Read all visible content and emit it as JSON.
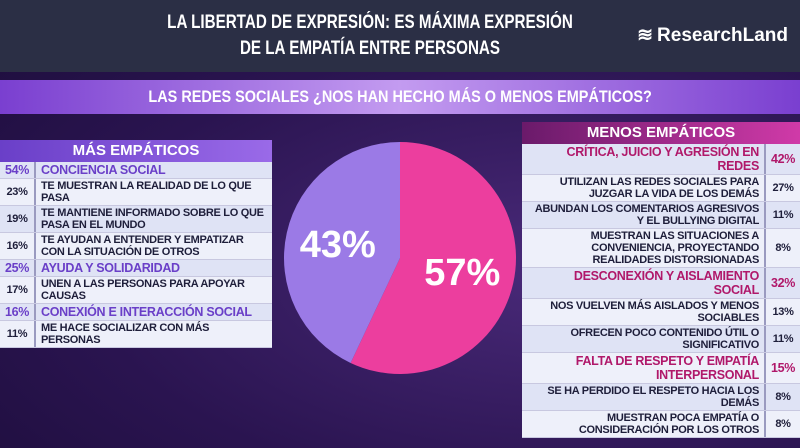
{
  "header": {
    "title_line1": "LA LIBERTAD DE EXPRESIÓN: ES MÁXIMA EXPRESIÓN",
    "title_line2": "DE LA EMPATÍA ENTRE PERSONAS",
    "logo": "ResearchLand"
  },
  "subtitle": "LAS REDES SOCIALES ¿NOS HAN HECHO MÁS O MENOS EMPÁTICOS?",
  "chart_data": {
    "type": "pie",
    "title": "LAS REDES SOCIALES ¿NOS HAN HECHO MÁS O MENOS EMPÁTICOS?",
    "slices": [
      {
        "label": "MENOS EMPÁTICOS",
        "value": 57,
        "text": "57%",
        "color": "#ec3e9e"
      },
      {
        "label": "MÁS EMPÁTICOS",
        "value": 43,
        "text": "43%",
        "color": "#9b7ae6"
      }
    ]
  },
  "left": {
    "title": "MÁS EMPÁTICOS",
    "rows": [
      {
        "pct": "54%",
        "text": "CONCIENCIA SOCIAL",
        "cat": true
      },
      {
        "pct": "23%",
        "text": "TE MUESTRAN LA REALIDAD DE LO QUE PASA"
      },
      {
        "pct": "19%",
        "text": "TE MANTIENE INFORMADO SOBRE LO QUE PASA EN EL MUNDO"
      },
      {
        "pct": "16%",
        "text": "TE AYUDAN A ENTENDER Y EMPATIZAR CON LA SITUACIÓN DE OTROS"
      },
      {
        "pct": "25%",
        "text": "AYUDA Y SOLIDARIDAD",
        "cat": true
      },
      {
        "pct": "17%",
        "text": "UNEN A LAS PERSONAS PARA APOYAR CAUSAS"
      },
      {
        "pct": "16%",
        "text": "CONEXIÓN E INTERACCIÓN SOCIAL",
        "cat": true
      },
      {
        "pct": "11%",
        "text": "ME HACE SOCIALIZAR CON MÁS PERSONAS"
      }
    ]
  },
  "right": {
    "title": "MENOS EMPÁTICOS",
    "rows": [
      {
        "pct": "42%",
        "text": "CRÍTICA, JUICIO Y AGRESIÓN EN REDES",
        "cat": true
      },
      {
        "pct": "27%",
        "text": "UTILIZAN LAS REDES SOCIALES PARA JUZGAR LA VIDA DE LOS DEMÁS"
      },
      {
        "pct": "11%",
        "text": "ABUNDAN LOS COMENTARIOS AGRESIVOS Y EL BULLYING DIGITAL"
      },
      {
        "pct": "8%",
        "text": "MUESTRAN LAS SITUACIONES A CONVENIENCIA, PROYECTANDO REALIDADES DISTORSIONADAS"
      },
      {
        "pct": "32%",
        "text": "DESCONEXIÓN Y AISLAMIENTO SOCIAL",
        "cat": true
      },
      {
        "pct": "13%",
        "text": "NOS VUELVEN MÁS AISLADOS Y MENOS SOCIABLES"
      },
      {
        "pct": "11%",
        "text": "OFRECEN POCO CONTENIDO ÚTIL O SIGNIFICATIVO"
      },
      {
        "pct": "15%",
        "text": "FALTA DE RESPETO Y EMPATÍA INTERPERSONAL",
        "cat": true
      },
      {
        "pct": "8%",
        "text": "SE HA PERDIDO EL RESPETO HACIA LOS DEMÁS"
      },
      {
        "pct": "8%",
        "text": "MUESTRAN POCA EMPATÍA O CONSIDERACIÓN POR LOS OTROS"
      }
    ]
  }
}
